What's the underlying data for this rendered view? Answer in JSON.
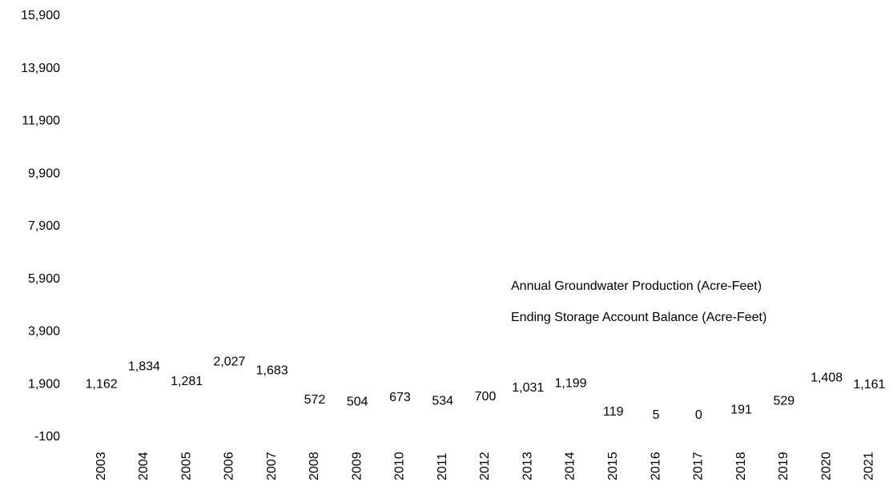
{
  "chart_data": {
    "type": "bar",
    "categories": [
      "2003",
      "2004",
      "2005",
      "2006",
      "2007",
      "2008",
      "2009",
      "2010",
      "2011",
      "2012",
      "2013",
      "2014",
      "2015",
      "2016",
      "2017",
      "2018",
      "2019",
      "2020",
      "2021"
    ],
    "series": [
      {
        "name": "Annual Groundwater Production (Acre-Feet)",
        "values": [
          1162,
          1834,
          1281,
          2027,
          1683,
          572,
          504,
          673,
          534,
          700,
          1031,
          1199,
          119,
          5,
          0,
          191,
          529,
          1408,
          1161
        ],
        "value_labels": [
          "1,162",
          "1,834",
          "1,281",
          "2,027",
          "1,683",
          "572",
          "504",
          "673",
          "534",
          "700",
          "1,031",
          "1,199",
          "119",
          "5",
          "0",
          "191",
          "529",
          "1,408",
          "1,161"
        ]
      },
      {
        "name": "Ending Storage Account Balance (Acre-Feet)",
        "values": [
          null,
          null,
          null,
          null,
          null,
          null,
          null,
          null,
          null,
          null,
          null,
          null,
          null,
          null,
          null,
          null,
          null,
          null,
          null
        ]
      }
    ],
    "ylim": [
      -100,
      15900
    ],
    "yticks": [
      -100,
      {
        "value": 1900,
        "label": "1,900"
      },
      {
        "value": 3900,
        "label": "3,900"
      },
      {
        "value": 5900,
        "label": "5,900"
      },
      {
        "value": 7900,
        "label": "7,900"
      },
      {
        "value": 9900,
        "label": "9,900"
      },
      {
        "value": 11900,
        "label": "11,900"
      },
      {
        "value": 13900,
        "label": "13,900"
      },
      {
        "value": 15900,
        "label": "15,900"
      }
    ],
    "grid": false
  }
}
